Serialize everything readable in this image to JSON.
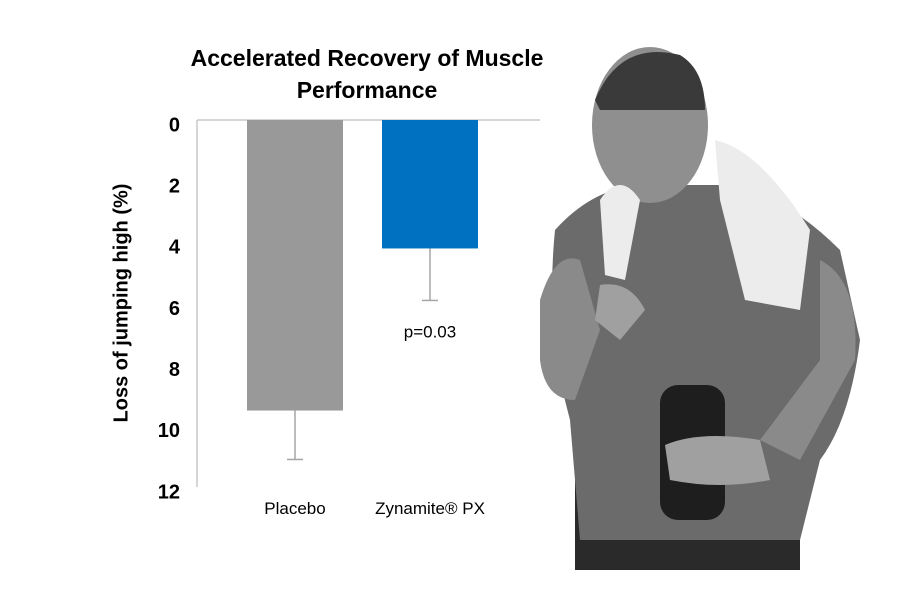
{
  "chart_data": {
    "type": "bar",
    "title": "Accelerated Recovery of Muscle Performance",
    "ylabel": "Loss of jumping high (%)",
    "categories": [
      "Placebo",
      "Zynamite® PX"
    ],
    "values": [
      9.5,
      4.2
    ],
    "errors": [
      1.6,
      1.7
    ],
    "colors": [
      "#999999",
      "#0070c0"
    ],
    "error_color": "#a6a6a6",
    "ylim": [
      0,
      12
    ],
    "yticks": [
      0,
      2,
      4,
      6,
      8,
      10,
      12
    ],
    "y_inverted": true,
    "grid": false,
    "annotations": [
      {
        "text": "p=0.03",
        "category": 1
      }
    ]
  }
}
